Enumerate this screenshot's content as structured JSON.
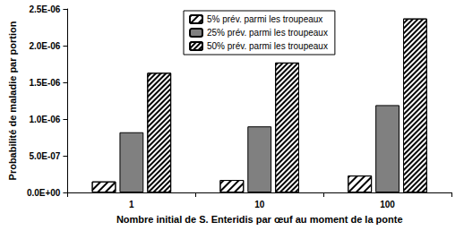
{
  "chart_data": {
    "type": "bar",
    "x_label": "Nombre initial de S. Enteridis par œuf au moment de la ponte",
    "y_label": "Probabilité de maladie par portion",
    "categories": [
      "1",
      "10",
      "100"
    ],
    "series": [
      {
        "name": "5% prév. parmi les troupeaux",
        "color": "#ffffff",
        "values": [
          1.5e-07,
          1.7e-07,
          2.3e-07
        ]
      },
      {
        "name": "25% prév. parmi les troupeaux",
        "color": "#808080",
        "values": [
          8.2e-07,
          9e-07,
          1.19e-06
        ]
      },
      {
        "name": "50% prév. parmi les troupeaux",
        "color": "#ffffff",
        "values": [
          1.63e-06,
          1.77e-06,
          2.37e-06
        ]
      }
    ],
    "ylim": [
      0,
      2.5e-06
    ],
    "yticks": [
      {
        "value": 0,
        "label": "0.0E+00"
      },
      {
        "value": 5e-07,
        "label": "5.0E-07"
      },
      {
        "value": 1e-06,
        "label": "1.0E-06"
      },
      {
        "value": 1.5e-06,
        "label": "1.5E-06"
      },
      {
        "value": 2e-06,
        "label": "2.0E-06"
      },
      {
        "value": 2.5e-06,
        "label": "2.5E-06"
      }
    ],
    "grid": false,
    "legend": "top"
  }
}
